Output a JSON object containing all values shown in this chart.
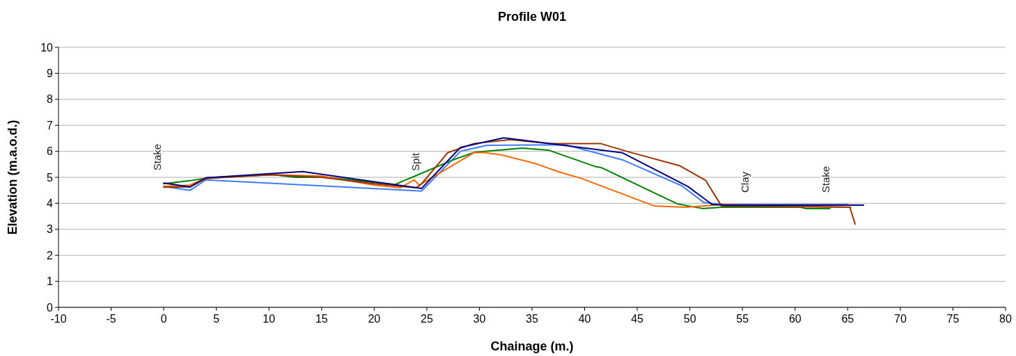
{
  "chart_data": {
    "type": "line",
    "title": "Profile W01",
    "xlabel": "Chainage (m.)",
    "ylabel": "Elevation (m.a.o.d.)",
    "xlim": [
      -10,
      80
    ],
    "xticks": [
      -10,
      -5,
      0,
      5,
      10,
      15,
      20,
      25,
      30,
      35,
      40,
      45,
      50,
      55,
      60,
      65,
      70,
      75,
      80
    ],
    "ylim": [
      0,
      10
    ],
    "yticks": [
      0,
      1,
      2,
      3,
      4,
      5,
      6,
      7,
      8,
      9,
      10
    ],
    "grid": "y",
    "marker": "none",
    "line_style": "solid",
    "series": [
      {
        "color": "#3e7bff",
        "x": [
          0,
          2.5,
          4,
          24.5,
          28.2,
          30.7,
          38.2,
          43.6,
          49.2,
          51.3,
          53,
          65
        ],
        "values": [
          4.65,
          4.5,
          4.9,
          4.47,
          6.0,
          6.23,
          6.25,
          5.67,
          4.68,
          4.04,
          3.95,
          3.95
        ]
      },
      {
        "color": "#008000",
        "x": [
          0,
          2.5,
          4,
          10.5,
          12.5,
          15.5,
          22,
          22.8,
          23.6,
          27.5,
          29.5,
          34.1,
          36.6,
          40.9,
          41.6,
          48.8,
          51.2,
          53,
          60.5,
          61,
          63.3
        ],
        "values": [
          4.75,
          4.87,
          4.97,
          5.1,
          5.0,
          5.0,
          4.72,
          4.87,
          5.0,
          5.67,
          5.96,
          6.12,
          6.04,
          5.43,
          5.37,
          3.98,
          3.8,
          3.85,
          3.85,
          3.8,
          3.8
        ]
      },
      {
        "color": "#ff6600",
        "x": [
          0,
          2.5,
          4,
          10,
          15,
          20,
          22.5,
          23.8,
          24.3,
          29.5,
          30.5,
          32.1,
          35.3,
          37.6,
          39.6,
          46.6,
          49.5,
          51.3,
          53,
          65.3
        ],
        "values": [
          4.65,
          4.7,
          4.98,
          5.1,
          5.05,
          4.7,
          4.6,
          4.9,
          4.7,
          5.95,
          5.95,
          5.86,
          5.53,
          5.2,
          4.97,
          3.9,
          3.85,
          3.9,
          3.95,
          3.85
        ]
      },
      {
        "color": "#993300",
        "x": [
          0,
          2.5,
          4,
          10,
          15,
          20,
          24,
          24.5,
          27,
          29.5,
          33,
          36.5,
          41.5,
          44,
          49,
          51.5,
          53,
          65.2,
          65.7
        ],
        "values": [
          4.62,
          4.63,
          4.95,
          5.1,
          5.0,
          4.75,
          4.6,
          4.75,
          5.95,
          6.3,
          6.45,
          6.3,
          6.3,
          6.0,
          5.45,
          4.88,
          3.9,
          3.85,
          3.2
        ]
      },
      {
        "color": "#000080",
        "x": [
          0,
          2.5,
          4,
          13.2,
          24.5,
          28.2,
          32.3,
          43.6,
          49.8,
          52.1,
          53.5,
          66.5
        ],
        "values": [
          4.78,
          4.63,
          4.98,
          5.22,
          4.57,
          6.15,
          6.52,
          5.94,
          4.65,
          3.96,
          3.93,
          3.93
        ]
      }
    ],
    "annotations": [
      "Stake",
      "Spit",
      "Clay",
      "Stake"
    ]
  }
}
